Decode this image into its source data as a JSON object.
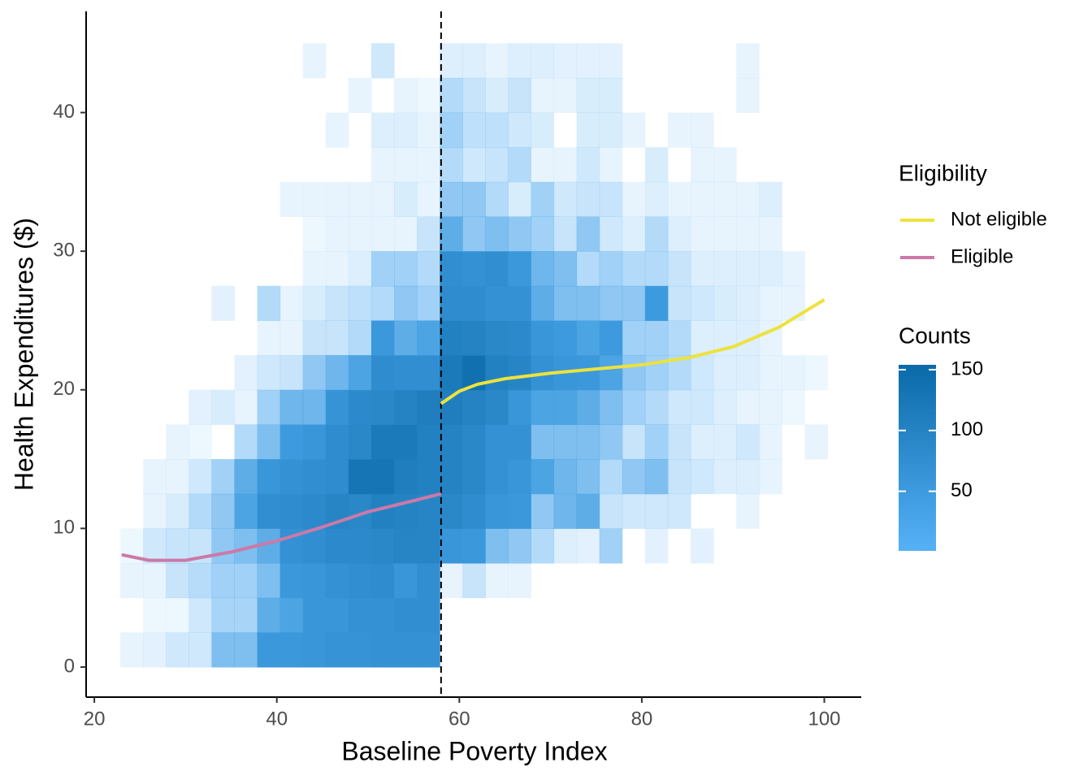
{
  "chart_data": {
    "type": "bin2d",
    "x_label": "Baseline Poverty Index",
    "y_label": "Health Expenditures ($)",
    "xlim": [
      19.1,
      104.05
    ],
    "ylim": [
      -2.17,
      47.3
    ],
    "xticks": [
      20,
      40,
      60,
      80,
      100
    ],
    "yticks": [
      0,
      10,
      20,
      30,
      40
    ],
    "cutoff": 58,
    "x_bins": [
      22.85,
      25.35,
      27.85,
      30.35,
      32.85,
      35.35,
      37.85,
      40.35,
      42.85,
      45.35,
      47.85,
      50.35,
      52.85,
      55.35,
      57.85,
      60.35,
      62.85,
      65.35,
      67.85,
      70.35,
      72.85,
      75.35,
      77.85,
      80.35,
      82.85,
      85.35,
      87.85,
      90.35,
      92.85,
      95.35,
      97.85,
      100.35
    ],
    "y_bins": [
      0,
      2.5,
      5,
      7.5,
      10,
      12.5,
      15,
      17.5,
      20,
      22.5,
      25,
      27.5,
      30,
      32.5,
      35,
      37.5,
      40,
      42.5,
      45
    ],
    "counts": [
      [
        3,
        4,
        8,
        8,
        30,
        30,
        55,
        55,
        60,
        65,
        65,
        70,
        70,
        70,
        null,
        null,
        null,
        null,
        null,
        null,
        null,
        null,
        null,
        null,
        null,
        null,
        null,
        null,
        null,
        null,
        null
      ],
      [
        null,
        2,
        2,
        8,
        18,
        18,
        40,
        45,
        60,
        60,
        70,
        70,
        75,
        75,
        null,
        null,
        null,
        null,
        null,
        null,
        null,
        null,
        null,
        null,
        null,
        null,
        null,
        null,
        null,
        null,
        null
      ],
      [
        3,
        3,
        10,
        14,
        20,
        20,
        30,
        55,
        60,
        70,
        75,
        80,
        60,
        75,
        3,
        10,
        3,
        3,
        null,
        null,
        null,
        null,
        null,
        null,
        null,
        null,
        null,
        null,
        null,
        null,
        null
      ],
      [
        2,
        8,
        10,
        10,
        25,
        30,
        40,
        70,
        75,
        85,
        85,
        90,
        95,
        95,
        60,
        55,
        30,
        25,
        15,
        5,
        4,
        20,
        null,
        4,
        null,
        4,
        null,
        null,
        null,
        null,
        null
      ],
      [
        null,
        3,
        6,
        15,
        25,
        45,
        75,
        80,
        85,
        95,
        90,
        105,
        100,
        95,
        90,
        80,
        60,
        55,
        25,
        35,
        40,
        10,
        8,
        8,
        8,
        null,
        null,
        3,
        null,
        null,
        null
      ],
      [
        null,
        3,
        3,
        8,
        20,
        40,
        60,
        70,
        75,
        80,
        130,
        130,
        110,
        105,
        100,
        90,
        70,
        60,
        45,
        35,
        30,
        15,
        25,
        30,
        10,
        8,
        5,
        5,
        3,
        null,
        null
      ],
      [
        null,
        null,
        3,
        2,
        null,
        15,
        30,
        50,
        60,
        80,
        90,
        120,
        120,
        105,
        100,
        90,
        70,
        70,
        30,
        30,
        30,
        25,
        10,
        20,
        10,
        5,
        5,
        8,
        3,
        null,
        3
      ],
      [
        null,
        null,
        null,
        4,
        6,
        3,
        20,
        35,
        35,
        65,
        85,
        90,
        100,
        110,
        110,
        100,
        90,
        60,
        45,
        45,
        40,
        30,
        20,
        15,
        8,
        8,
        5,
        3,
        3,
        2,
        null
      ],
      [
        null,
        null,
        null,
        null,
        null,
        4,
        8,
        10,
        25,
        35,
        45,
        80,
        75,
        75,
        120,
        140,
        105,
        95,
        70,
        60,
        55,
        45,
        25,
        20,
        15,
        8,
        5,
        5,
        3,
        3,
        2
      ],
      [
        null,
        null,
        null,
        null,
        null,
        null,
        3,
        3,
        10,
        10,
        15,
        55,
        40,
        45,
        105,
        100,
        90,
        85,
        60,
        50,
        45,
        50,
        20,
        20,
        15,
        5,
        5,
        5,
        3,
        null,
        null
      ],
      [
        null,
        null,
        null,
        null,
        4,
        null,
        15,
        3,
        6,
        10,
        12,
        15,
        25,
        20,
        80,
        80,
        70,
        70,
        40,
        30,
        30,
        25,
        25,
        50,
        10,
        8,
        6,
        5,
        3,
        3,
        null
      ],
      [
        null,
        null,
        null,
        null,
        null,
        null,
        null,
        null,
        3,
        3,
        5,
        20,
        20,
        15,
        75,
        70,
        75,
        55,
        35,
        30,
        15,
        20,
        15,
        15,
        10,
        5,
        5,
        5,
        5,
        3,
        null
      ],
      [
        null,
        null,
        null,
        null,
        null,
        null,
        null,
        null,
        2,
        3,
        3,
        3,
        3,
        10,
        40,
        25,
        30,
        25,
        20,
        10,
        25,
        8,
        5,
        15,
        5,
        3,
        3,
        3,
        3,
        null,
        null
      ],
      [
        null,
        null,
        null,
        null,
        null,
        null,
        null,
        3,
        3,
        3,
        3,
        3,
        6,
        3,
        25,
        25,
        15,
        6,
        20,
        8,
        10,
        10,
        3,
        5,
        3,
        3,
        3,
        3,
        5,
        null,
        null
      ],
      [
        null,
        null,
        null,
        null,
        null,
        null,
        null,
        null,
        null,
        null,
        null,
        3,
        3,
        3,
        15,
        8,
        10,
        15,
        3,
        3,
        8,
        3,
        null,
        6,
        null,
        3,
        3,
        null,
        null,
        null,
        null
      ],
      [
        null,
        null,
        null,
        null,
        null,
        null,
        null,
        null,
        null,
        3,
        null,
        5,
        5,
        3,
        20,
        12,
        12,
        8,
        6,
        null,
        6,
        6,
        3,
        null,
        3,
        3,
        null,
        null,
        null,
        null,
        null
      ],
      [
        null,
        null,
        null,
        null,
        null,
        null,
        null,
        null,
        null,
        null,
        3,
        null,
        3,
        2,
        15,
        10,
        6,
        10,
        3,
        3,
        6,
        6,
        null,
        null,
        null,
        null,
        null,
        3,
        null,
        null,
        null
      ],
      [
        null,
        null,
        null,
        null,
        null,
        null,
        null,
        null,
        3,
        null,
        null,
        8,
        null,
        null,
        5,
        5,
        3,
        5,
        5,
        4,
        4,
        4,
        null,
        null,
        null,
        null,
        null,
        3,
        null,
        null,
        null
      ]
    ],
    "fill_low": "#56B1F7",
    "fill_high": "#0a6aa8",
    "colorbar_title": "Counts",
    "colorbar_lim": [
      1,
      154
    ],
    "colorbar_ticks": [
      50,
      100,
      150
    ],
    "legend_title": "Eligibility",
    "series": [
      {
        "name": "Not eligible",
        "color": "#EDE23D",
        "x": [
          58,
          60,
          62,
          65,
          70,
          75,
          80,
          85,
          90,
          95,
          100
        ],
        "values": [
          19,
          19.9,
          20.4,
          20.8,
          21.2,
          21.5,
          21.8,
          22.3,
          23.1,
          24.5,
          26.5
        ]
      },
      {
        "name": "Eligible",
        "color": "#CC79A7",
        "x": [
          23,
          26,
          30,
          35,
          40,
          45,
          50,
          55,
          58
        ],
        "values": [
          8.1,
          7.7,
          7.7,
          8.3,
          9.1,
          10.1,
          11.2,
          12.0,
          12.5
        ]
      }
    ]
  }
}
